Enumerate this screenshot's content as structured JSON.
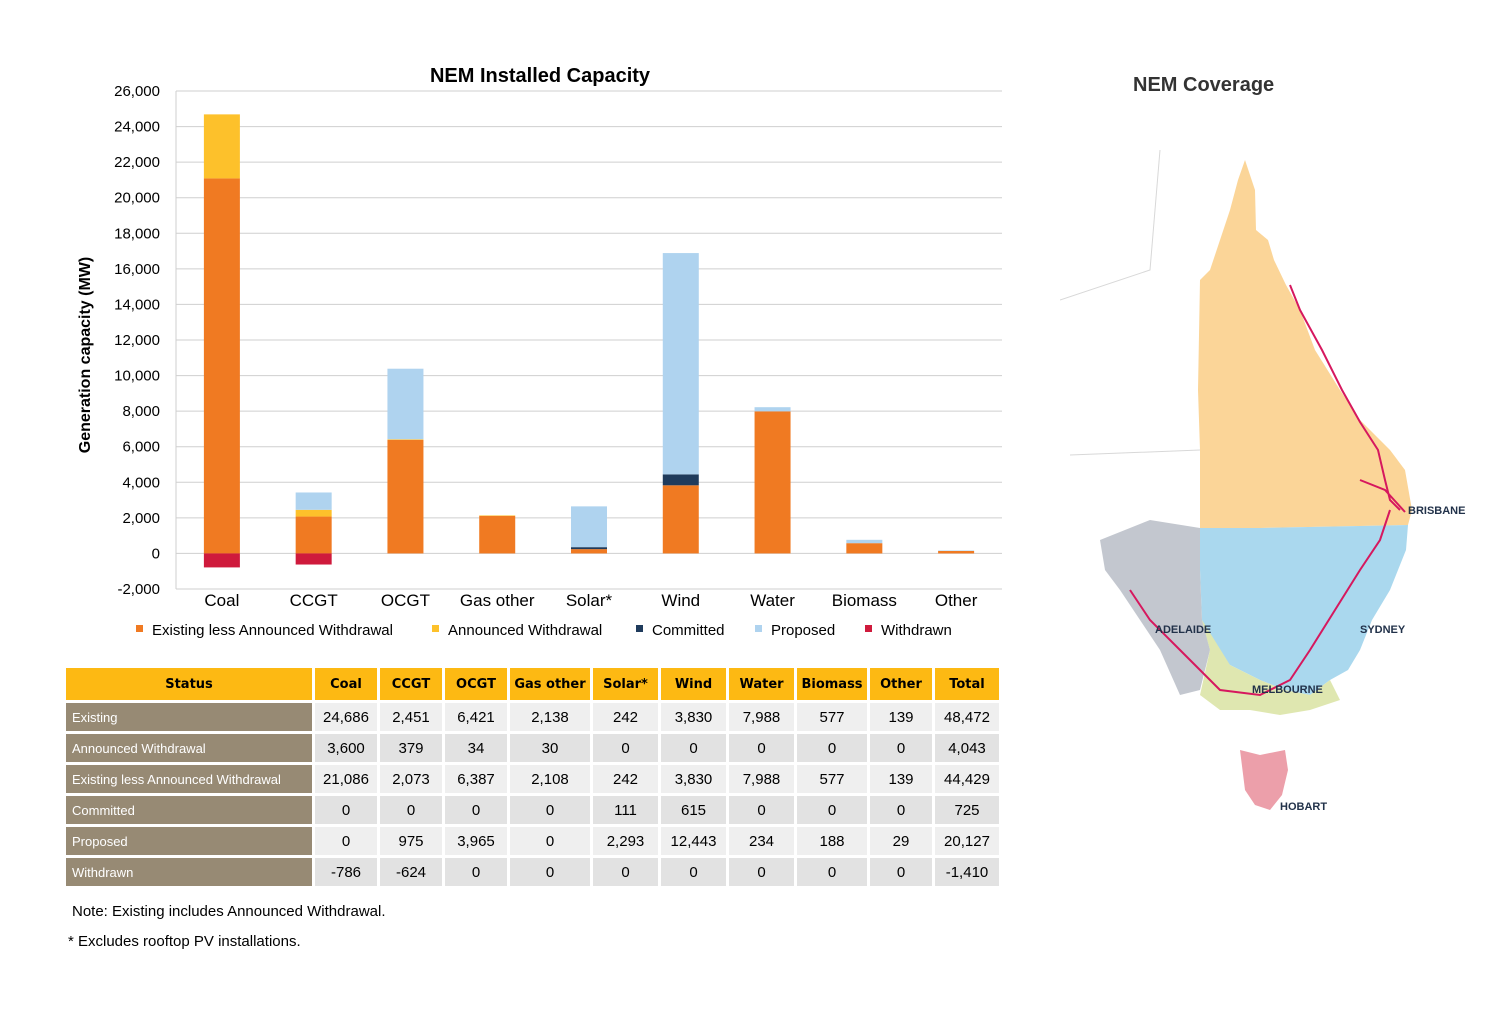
{
  "chart_data": {
    "type": "bar",
    "stacked": true,
    "title": "NEM Installed Capacity",
    "ylabel": "Generation capacity (MW)",
    "xlabel": "",
    "ylim": [
      -2000,
      26000
    ],
    "yticks": [
      -2000,
      0,
      2000,
      4000,
      6000,
      8000,
      10000,
      12000,
      14000,
      16000,
      18000,
      20000,
      22000,
      24000,
      26000
    ],
    "ytick_labels": [
      "-2,000",
      "0",
      "2,000",
      "4,000",
      "6,000",
      "8,000",
      "10,000",
      "12,000",
      "14,000",
      "16,000",
      "18,000",
      "20,000",
      "22,000",
      "24,000",
      "26,000"
    ],
    "grid": true,
    "legend_position": "bottom",
    "categories": [
      "Coal",
      "CCGT",
      "OCGT",
      "Gas other",
      "Solar*",
      "Wind",
      "Water",
      "Biomass",
      "Other"
    ],
    "series": [
      {
        "name": "Existing less Announced Withdrawal",
        "color": "#f07a22",
        "values": [
          21086,
          2073,
          6387,
          2108,
          242,
          3830,
          7988,
          577,
          139
        ]
      },
      {
        "name": "Announced Withdrawal",
        "color": "#fdc12b",
        "values": [
          3600,
          379,
          34,
          30,
          0,
          0,
          0,
          0,
          0
        ]
      },
      {
        "name": "Committed",
        "color": "#1f3b5c",
        "values": [
          0,
          0,
          0,
          0,
          111,
          615,
          0,
          0,
          0
        ]
      },
      {
        "name": "Proposed",
        "color": "#afd3ef",
        "values": [
          0,
          975,
          3965,
          0,
          2293,
          12443,
          234,
          188,
          29
        ]
      },
      {
        "name": "Withdrawn",
        "color": "#cf1a3c",
        "values": [
          -786,
          -624,
          0,
          0,
          0,
          0,
          0,
          0,
          0
        ]
      }
    ]
  },
  "table": {
    "headers": [
      "Status",
      "Coal",
      "CCGT",
      "OCGT",
      "Gas other",
      "Solar*",
      "Wind",
      "Water",
      "Biomass",
      "Other",
      "Total"
    ],
    "rows": [
      {
        "label": "Existing",
        "cells": [
          "24,686",
          "2,451",
          "6,421",
          "2,138",
          "242",
          "3,830",
          "7,988",
          "577",
          "139",
          "48,472"
        ]
      },
      {
        "label": "Announced Withdrawal",
        "cells": [
          "3,600",
          "379",
          "34",
          "30",
          "0",
          "0",
          "0",
          "0",
          "0",
          "4,043"
        ]
      },
      {
        "label": "Existing less Announced Withdrawal",
        "cells": [
          "21,086",
          "2,073",
          "6,387",
          "2,108",
          "242",
          "3,830",
          "7,988",
          "577",
          "139",
          "44,429"
        ]
      },
      {
        "label": "Committed",
        "cells": [
          "0",
          "0",
          "0",
          "0",
          "111",
          "615",
          "0",
          "0",
          "0",
          "725"
        ]
      },
      {
        "label": "Proposed",
        "cells": [
          "0",
          "975",
          "3,965",
          "0",
          "2,293",
          "12,443",
          "234",
          "188",
          "29",
          "20,127"
        ]
      },
      {
        "label": "Withdrawn",
        "cells": [
          "-786",
          "-624",
          "0",
          "0",
          "0",
          "0",
          "0",
          "0",
          "0",
          "-1,410"
        ]
      }
    ]
  },
  "notes": {
    "note1": "Note: Existing includes Announced Withdrawal.",
    "note2": "* Excludes rooftop PV installations."
  },
  "map": {
    "title": "NEM Coverage",
    "cities": [
      "BRISBANE",
      "SYDNEY",
      "ADELAIDE",
      "MELBOURNE",
      "HOBART"
    ],
    "region_colors": {
      "qld": "#fbd598",
      "nsw": "#aad8ee",
      "sa": "#c3c7cf",
      "vic": "#dfe7b0",
      "tas": "#ec9faa",
      "lines": "#d6185e"
    }
  }
}
